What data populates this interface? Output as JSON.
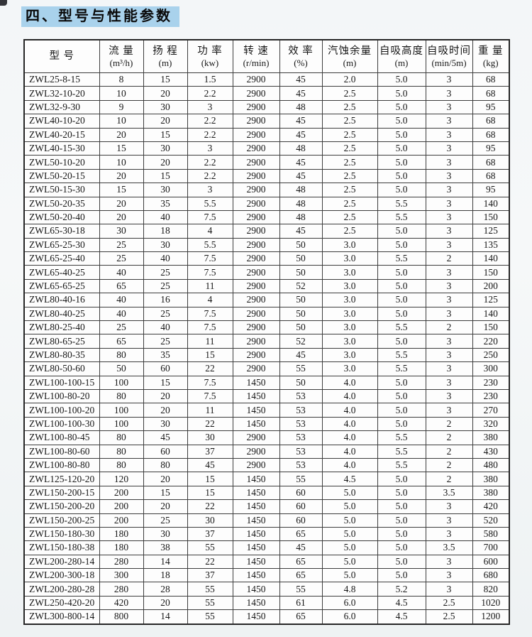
{
  "page": {
    "title": "四、型号与性能参数"
  },
  "accent_colors": {
    "title_highlight": "#a9d2ec",
    "table_border": "#3d3d3d",
    "text": "#161616"
  },
  "table": {
    "columns": [
      {
        "name": "型  号",
        "unit": ""
      },
      {
        "name": "流  量",
        "unit": "(m³/h)"
      },
      {
        "name": "扬  程",
        "unit": "(m)"
      },
      {
        "name": "功  率",
        "unit": "(kw)"
      },
      {
        "name": "转  速",
        "unit": "(r/min)"
      },
      {
        "name": "效  率",
        "unit": "(%)"
      },
      {
        "name": "汽蚀余量",
        "unit": "(m)"
      },
      {
        "name": "自吸高度",
        "unit": "(m)"
      },
      {
        "name": "自吸时间",
        "unit": "(min/5m)"
      },
      {
        "name": "重  量",
        "unit": "(kg)"
      }
    ],
    "rows": [
      [
        "ZWL25-8-15",
        "8",
        "15",
        "1.5",
        "2900",
        "45",
        "2.0",
        "5.0",
        "3",
        "68"
      ],
      [
        "ZWL32-10-20",
        "10",
        "20",
        "2.2",
        "2900",
        "45",
        "2.5",
        "5.0",
        "3",
        "68"
      ],
      [
        "ZWL32-9-30",
        "9",
        "30",
        "3",
        "2900",
        "48",
        "2.5",
        "5.0",
        "3",
        "95"
      ],
      [
        "ZWL40-10-20",
        "10",
        "20",
        "2.2",
        "2900",
        "45",
        "2.5",
        "5.0",
        "3",
        "68"
      ],
      [
        "ZWL40-20-15",
        "20",
        "15",
        "2.2",
        "2900",
        "45",
        "2.5",
        "5.0",
        "3",
        "68"
      ],
      [
        "ZWL40-15-30",
        "15",
        "30",
        "3",
        "2900",
        "48",
        "2.5",
        "5.0",
        "3",
        "95"
      ],
      [
        "ZWL50-10-20",
        "10",
        "20",
        "2.2",
        "2900",
        "45",
        "2.5",
        "5.0",
        "3",
        "68"
      ],
      [
        "ZWL50-20-15",
        "20",
        "15",
        "2.2",
        "2900",
        "45",
        "2.5",
        "5.0",
        "3",
        "68"
      ],
      [
        "ZWL50-15-30",
        "15",
        "30",
        "3",
        "2900",
        "48",
        "2.5",
        "5.0",
        "3",
        "95"
      ],
      [
        "ZWL50-20-35",
        "20",
        "35",
        "5.5",
        "2900",
        "48",
        "2.5",
        "5.5",
        "3",
        "140"
      ],
      [
        "ZWL50-20-40",
        "20",
        "40",
        "7.5",
        "2900",
        "48",
        "2.5",
        "5.5",
        "3",
        "150"
      ],
      [
        "ZWL65-30-18",
        "30",
        "18",
        "4",
        "2900",
        "45",
        "2.5",
        "5.0",
        "3",
        "125"
      ],
      [
        "ZWL65-25-30",
        "25",
        "30",
        "5.5",
        "2900",
        "50",
        "3.0",
        "5.0",
        "3",
        "135"
      ],
      [
        "ZWL65-25-40",
        "25",
        "40",
        "7.5",
        "2900",
        "50",
        "3.0",
        "5.5",
        "2",
        "140"
      ],
      [
        "ZWL65-40-25",
        "40",
        "25",
        "7.5",
        "2900",
        "50",
        "3.0",
        "5.0",
        "3",
        "150"
      ],
      [
        "ZWL65-65-25",
        "65",
        "25",
        "11",
        "2900",
        "52",
        "3.0",
        "5.0",
        "3",
        "200"
      ],
      [
        "ZWL80-40-16",
        "40",
        "16",
        "4",
        "2900",
        "50",
        "3.0",
        "5.0",
        "3",
        "125"
      ],
      [
        "ZWL80-40-25",
        "40",
        "25",
        "7.5",
        "2900",
        "50",
        "3.0",
        "5.0",
        "3",
        "140"
      ],
      [
        "ZWL80-25-40",
        "25",
        "40",
        "7.5",
        "2900",
        "50",
        "3.0",
        "5.5",
        "2",
        "150"
      ],
      [
        "ZWL80-65-25",
        "65",
        "25",
        "11",
        "2900",
        "52",
        "3.0",
        "5.0",
        "3",
        "220"
      ],
      [
        "ZWL80-80-35",
        "80",
        "35",
        "15",
        "2900",
        "45",
        "3.0",
        "5.5",
        "3",
        "250"
      ],
      [
        "ZWL80-50-60",
        "50",
        "60",
        "22",
        "2900",
        "55",
        "3.0",
        "5.5",
        "3",
        "300"
      ],
      [
        "ZWL100-100-15",
        "100",
        "15",
        "7.5",
        "1450",
        "50",
        "4.0",
        "5.0",
        "3",
        "230"
      ],
      [
        "ZWL100-80-20",
        "80",
        "20",
        "7.5",
        "1450",
        "53",
        "4.0",
        "5.0",
        "3",
        "230"
      ],
      [
        "ZWL100-100-20",
        "100",
        "20",
        "11",
        "1450",
        "53",
        "4.0",
        "5.0",
        "3",
        "270"
      ],
      [
        "ZWL100-100-30",
        "100",
        "30",
        "22",
        "1450",
        "53",
        "4.0",
        "5.0",
        "2",
        "320"
      ],
      [
        "ZWL100-80-45",
        "80",
        "45",
        "30",
        "2900",
        "53",
        "4.0",
        "5.5",
        "2",
        "380"
      ],
      [
        "ZWL100-80-60",
        "80",
        "60",
        "37",
        "2900",
        "53",
        "4.0",
        "5.5",
        "2",
        "430"
      ],
      [
        "ZWL100-80-80",
        "80",
        "80",
        "45",
        "2900",
        "53",
        "4.0",
        "5.5",
        "2",
        "480"
      ],
      [
        "ZWL125-120-20",
        "120",
        "20",
        "15",
        "1450",
        "55",
        "4.5",
        "5.0",
        "2",
        "380"
      ],
      [
        "ZWL150-200-15",
        "200",
        "15",
        "15",
        "1450",
        "60",
        "5.0",
        "5.0",
        "3.5",
        "380"
      ],
      [
        "ZWL150-200-20",
        "200",
        "20",
        "22",
        "1450",
        "60",
        "5.0",
        "5.0",
        "3",
        "420"
      ],
      [
        "ZWL150-200-25",
        "200",
        "25",
        "30",
        "1450",
        "60",
        "5.0",
        "5.0",
        "3",
        "520"
      ],
      [
        "ZWL150-180-30",
        "180",
        "30",
        "37",
        "1450",
        "65",
        "5.0",
        "5.0",
        "3",
        "580"
      ],
      [
        "ZWL150-180-38",
        "180",
        "38",
        "55",
        "1450",
        "45",
        "5.0",
        "5.0",
        "3.5",
        "700"
      ],
      [
        "ZWL200-280-14",
        "280",
        "14",
        "22",
        "1450",
        "65",
        "5.0",
        "5.0",
        "3",
        "600"
      ],
      [
        "ZWL200-300-18",
        "300",
        "18",
        "37",
        "1450",
        "65",
        "5.0",
        "5.0",
        "3",
        "680"
      ],
      [
        "ZWL200-280-28",
        "280",
        "28",
        "55",
        "1450",
        "55",
        "4.8",
        "5.2",
        "3",
        "820"
      ],
      [
        "ZWL250-420-20",
        "420",
        "20",
        "55",
        "1450",
        "61",
        "6.0",
        "4.5",
        "2.5",
        "1020"
      ],
      [
        "ZWL300-800-14",
        "800",
        "14",
        "55",
        "1450",
        "65",
        "6.0",
        "4.5",
        "2.5",
        "1200"
      ]
    ]
  }
}
